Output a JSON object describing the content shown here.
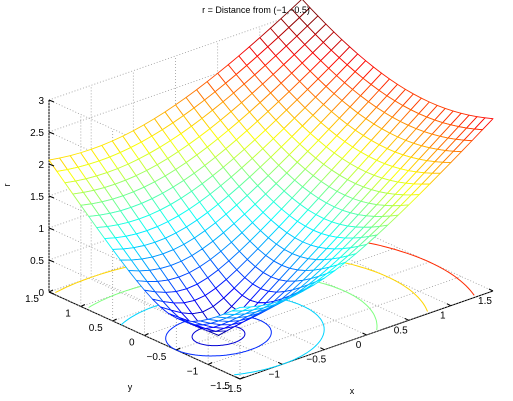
{
  "chart_data": {
    "type": "surface",
    "title": "r = Distance from (−1,−0.5)",
    "xlabel": "x",
    "ylabel": "y",
    "zlabel": "r",
    "xlim": [
      -1.5,
      1.5
    ],
    "ylim": [
      -1.5,
      1.5
    ],
    "zlim": [
      0,
      3
    ],
    "x_ticks": [
      "−1.5",
      "−1",
      "−0.5",
      "0",
      "0.5",
      "1",
      "1.5"
    ],
    "y_ticks": [
      "−1.5",
      "−1",
      "−0.5",
      "0",
      "0.5",
      "1",
      "1.5"
    ],
    "z_ticks": [
      "0",
      "0.5",
      "1",
      "1.5",
      "2",
      "2.5",
      "3"
    ],
    "center": [
      -1,
      -0.5
    ],
    "grid": true,
    "colormap": "jet",
    "contour_levels_on_floor": [
      0.25,
      0.5,
      1,
      1.5,
      2,
      2.5
    ]
  }
}
